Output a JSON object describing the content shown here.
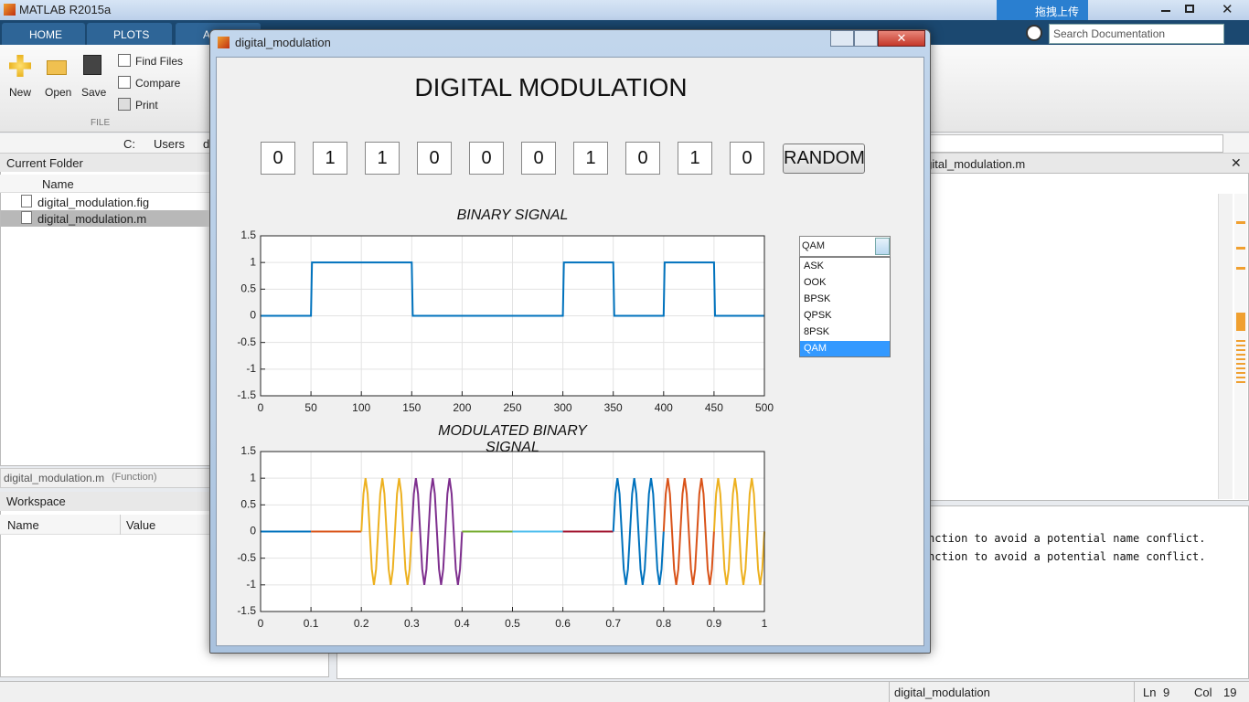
{
  "desktop": {
    "title": "MATLAB R2015a",
    "tabs": [
      "HOME",
      "PLOTS",
      "A"
    ],
    "toolstrip": {
      "new": "New",
      "open": "Open",
      "save": "Save",
      "find_files": "Find Files",
      "compare": "Compare",
      "print": "Print",
      "section": "FILE"
    },
    "search_placeholder": "Search Documentation",
    "upload_button": "拖拽上传",
    "address": [
      "C:",
      "Users",
      "d"
    ],
    "current_folder": {
      "title": "Current Folder",
      "column": "Name",
      "files": [
        "digital_modulation.fig",
        "digital_modulation.m"
      ],
      "selected": 1
    },
    "details": {
      "name": "digital_modulation.m",
      "kind": "(Function)"
    },
    "workspace": {
      "title": "Workspace",
      "columns": [
        "Name",
        "Value"
      ]
    },
    "editor_tab": "digital_modulation.m",
    "command_lines": [
      "nction to avoid a potential name conflict.",
      "nction to avoid a potential name conflict."
    ],
    "status": {
      "file": "digital_modulation",
      "ln_label": "Ln",
      "ln": 9,
      "col_label": "Col",
      "col": 19
    }
  },
  "figure": {
    "title": "digital_modulation",
    "heading": "DIGITAL MODULATION",
    "bits": [
      0,
      1,
      1,
      0,
      0,
      0,
      1,
      0,
      1,
      0
    ],
    "button": "RANDOM",
    "popup": {
      "value": "QAM",
      "options": [
        "ASK",
        "OOK",
        "BPSK",
        "QPSK",
        "8PSK",
        "QAM"
      ],
      "selected": 5
    }
  },
  "chart_data": [
    {
      "type": "line",
      "title": [
        "BINARY SIGNAL"
      ],
      "xlim": [
        0,
        500
      ],
      "xticks": [
        0,
        50,
        100,
        150,
        200,
        250,
        300,
        350,
        400,
        450,
        500
      ],
      "ylim": [
        -1.5,
        1.5
      ],
      "yticks": [
        -1.5,
        -1,
        -0.5,
        0,
        0.5,
        1,
        1.5
      ],
      "grid": true,
      "series": [
        {
          "color": "#0072bd",
          "x": [
            0,
            50,
            51,
            150,
            151,
            300,
            301,
            350,
            351,
            400,
            401,
            450,
            451,
            500
          ],
          "values": [
            0,
            0,
            1,
            1,
            0,
            0,
            1,
            1,
            0,
            0,
            1,
            1,
            0,
            0
          ]
        }
      ]
    },
    {
      "type": "line",
      "title": [
        "MODULATED BINARY",
        "SIGNAL"
      ],
      "xlim": [
        0,
        1
      ],
      "xticks": [
        0,
        0.1,
        0.2,
        0.3,
        0.4,
        0.5,
        0.6,
        0.7,
        0.8,
        0.9,
        1
      ],
      "ylim": [
        -1.5,
        1.5
      ],
      "yticks": [
        -1.5,
        -1,
        -0.5,
        0,
        0.5,
        1,
        1.5
      ],
      "grid": true,
      "series": [
        {
          "color": "#0072bd",
          "x": [
            0,
            0.1
          ],
          "values": [
            0,
            0
          ]
        },
        {
          "color": "#d95319",
          "x": [
            0.1,
            0.2
          ],
          "values": [
            0,
            0
          ]
        },
        {
          "color": "#edb120",
          "x": [
            0.2,
            0.2042,
            0.2083,
            0.2125,
            0.2167,
            0.2208,
            0.225,
            0.2292,
            0.2333,
            0.2375,
            0.2417,
            0.2458,
            0.25,
            0.2542,
            0.2583,
            0.2625,
            0.2667,
            0.2708,
            0.275,
            0.2792,
            0.2833,
            0.2875,
            0.2917,
            0.2958,
            0.3
          ],
          "values": [
            0,
            0.707,
            1,
            0.707,
            0,
            -0.707,
            -1,
            -0.707,
            0,
            0.707,
            1,
            0.707,
            0,
            -0.707,
            -1,
            -0.707,
            0,
            0.707,
            1,
            0.707,
            0,
            -0.707,
            -1,
            -0.707,
            0
          ]
        },
        {
          "color": "#7e2f8e",
          "x": [
            0.3,
            0.3042,
            0.3083,
            0.3125,
            0.3167,
            0.3208,
            0.325,
            0.3292,
            0.3333,
            0.3375,
            0.3417,
            0.3458,
            0.35,
            0.3542,
            0.3583,
            0.3625,
            0.3667,
            0.3708,
            0.375,
            0.3792,
            0.3833,
            0.3875,
            0.3917,
            0.3958,
            0.4
          ],
          "values": [
            0,
            0.707,
            1,
            0.707,
            0,
            -0.707,
            -1,
            -0.707,
            0,
            0.707,
            1,
            0.707,
            0,
            -0.707,
            -1,
            -0.707,
            0,
            0.707,
            1,
            0.707,
            0,
            -0.707,
            -1,
            -0.707,
            0
          ]
        },
        {
          "color": "#77ac30",
          "x": [
            0.4,
            0.5
          ],
          "values": [
            0,
            0
          ]
        },
        {
          "color": "#4dbeee",
          "x": [
            0.5,
            0.6
          ],
          "values": [
            0,
            0
          ]
        },
        {
          "color": "#a2142f",
          "x": [
            0.6,
            0.7
          ],
          "values": [
            0,
            0
          ]
        },
        {
          "color": "#0072bd",
          "x": [
            0.7,
            0.7042,
            0.7083,
            0.7125,
            0.7167,
            0.7208,
            0.725,
            0.7292,
            0.7333,
            0.7375,
            0.7417,
            0.7458,
            0.75,
            0.7542,
            0.7583,
            0.7625,
            0.7667,
            0.7708,
            0.775,
            0.7792,
            0.7833,
            0.7875,
            0.7917,
            0.7958,
            0.8
          ],
          "values": [
            0,
            0.707,
            1,
            0.707,
            0,
            -0.707,
            -1,
            -0.707,
            0,
            0.707,
            1,
            0.707,
            0,
            -0.707,
            -1,
            -0.707,
            0,
            0.707,
            1,
            0.707,
            0,
            -0.707,
            -1,
            -0.707,
            0
          ]
        },
        {
          "color": "#d95319",
          "x": [
            0.8,
            0.8042,
            0.8083,
            0.8125,
            0.8167,
            0.8208,
            0.825,
            0.8292,
            0.8333,
            0.8375,
            0.8417,
            0.8458,
            0.85,
            0.8542,
            0.8583,
            0.8625,
            0.8667,
            0.8708,
            0.875,
            0.8792,
            0.8833,
            0.8875,
            0.8917,
            0.8958,
            0.9
          ],
          "values": [
            0,
            0.707,
            1,
            0.707,
            0,
            -0.707,
            -1,
            -0.707,
            0,
            0.707,
            1,
            0.707,
            0,
            -0.707,
            -1,
            -0.707,
            0,
            0.707,
            1,
            0.707,
            0,
            -0.707,
            -1,
            -0.707,
            0
          ]
        },
        {
          "color": "#edb120",
          "x": [
            0.9,
            0.9042,
            0.9083,
            0.9125,
            0.9167,
            0.9208,
            0.925,
            0.9292,
            0.9333,
            0.9375,
            0.9417,
            0.9458,
            0.95,
            0.9542,
            0.9583,
            0.9625,
            0.9667,
            0.9708,
            0.975,
            0.9792,
            0.9833,
            0.9875,
            0.9917,
            0.9958,
            1
          ],
          "values": [
            0,
            0.707,
            1,
            0.707,
            0,
            -0.707,
            -1,
            -0.707,
            0,
            0.707,
            1,
            0.707,
            0,
            -0.707,
            -1,
            -0.707,
            0,
            0.707,
            1,
            0.707,
            0,
            -0.707,
            -1,
            -0.707,
            0
          ]
        }
      ]
    }
  ]
}
